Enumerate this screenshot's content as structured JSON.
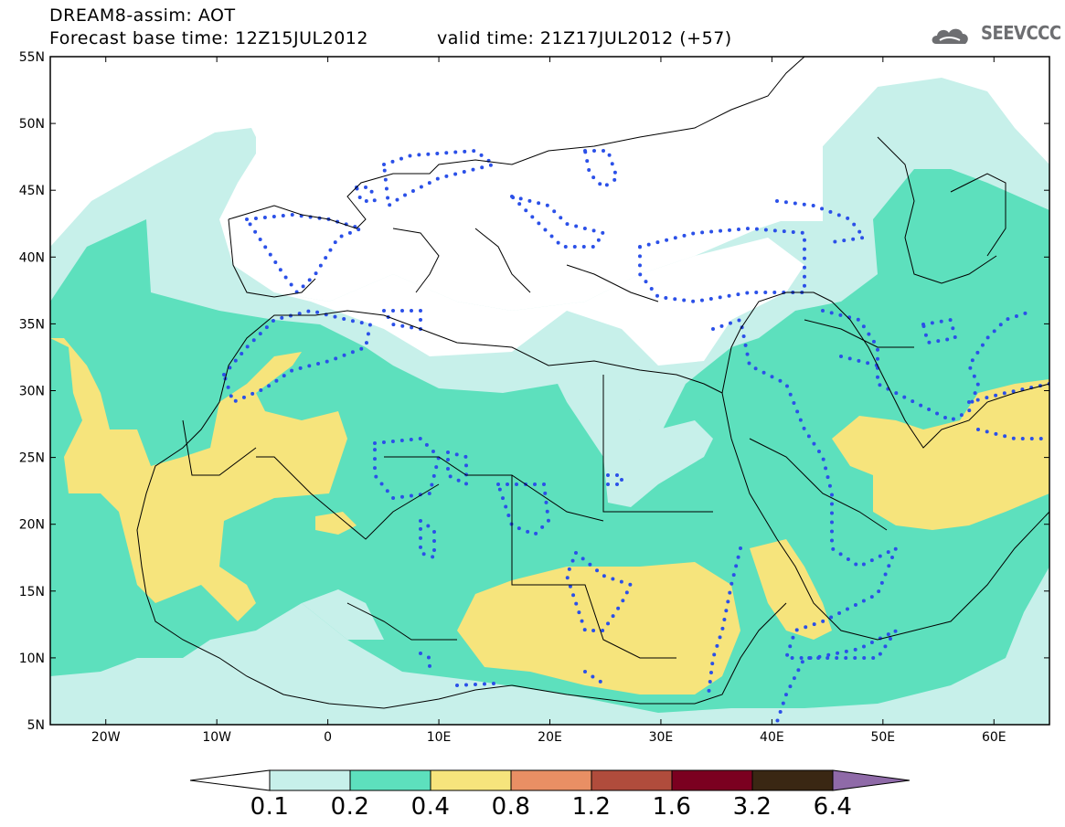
{
  "header": {
    "line1": "DREAM8-assim: AOT",
    "line2": "Forecast base time: 12Z15JUL2012",
    "valid": "valid time: 21Z17JUL2012 (+57)",
    "logo_text": "SEEVCCC"
  },
  "map": {
    "region": "North Africa, Europe and Middle East",
    "lon_range": [
      -25,
      65
    ],
    "lat_range": [
      5,
      55
    ],
    "lat_labels": [
      "55N",
      "50N",
      "45N",
      "40N",
      "35N",
      "30N",
      "25N",
      "20N",
      "15N",
      "10N",
      "5N"
    ],
    "lon_labels": [
      "20W",
      "10W",
      "0",
      "10E",
      "20E",
      "30E",
      "40E",
      "50E",
      "60E"
    ],
    "overlay": "blue dotted contour",
    "fields": {
      "0.1-0.2": "#c7f0ea",
      "0.2-0.4": "#5de0bd",
      "0.4-0.8": "#f6e47c"
    }
  },
  "colorbar": {
    "levels": [
      "0.1",
      "0.2",
      "0.4",
      "0.8",
      "1.2",
      "1.6",
      "3.2",
      "6.4"
    ],
    "colors": [
      "#ffffff",
      "#c7f0ea",
      "#5de0bd",
      "#f6e47c",
      "#e98f64",
      "#b04c3c",
      "#7b0020",
      "#3a2713",
      "#8f6aa8"
    ]
  }
}
